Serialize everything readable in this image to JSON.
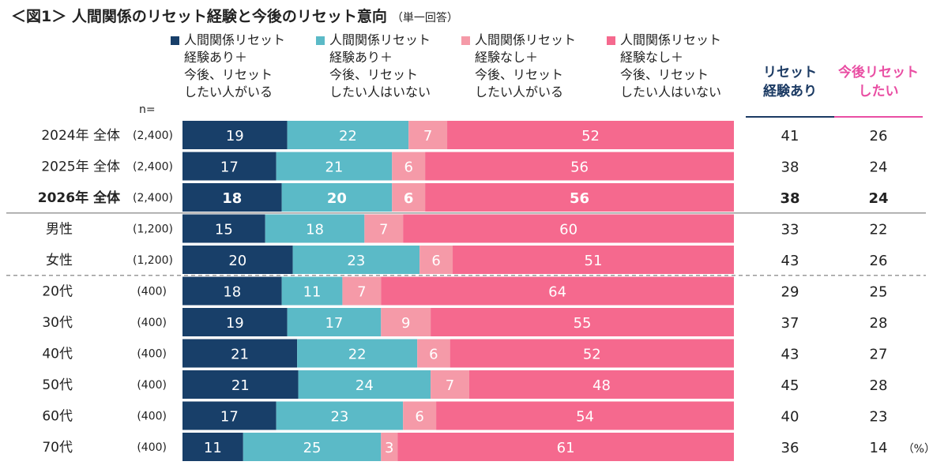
{
  "title": "＜図1＞ 人間関係のリセット経験と今後のリセット意向",
  "subtitle": "（単一回答）",
  "n_label": "n=",
  "unit": "（%）",
  "column_headers": [
    {
      "label": "リセット\n経験あり",
      "color": "#1b3a63"
    },
    {
      "label": "今後リセット\nしたい",
      "color": "#e94ea3"
    }
  ],
  "chart_data": {
    "type": "bar",
    "stacked": true,
    "orientation": "horizontal",
    "categories": [
      "2024年 全体",
      "2025年 全体",
      "2026年 全体",
      "男性",
      "女性",
      "20代",
      "30代",
      "40代",
      "50代",
      "60代",
      "70代"
    ],
    "sample_sizes": [
      "(2,400)",
      "(2,400)",
      "(2,400)",
      "(1,200)",
      "(1,200)",
      "(400)",
      "(400)",
      "(400)",
      "(400)",
      "(400)",
      "(400)"
    ],
    "highlighted_category": "2026年 全体",
    "series": [
      {
        "name": "人間関係リセット\n経験あり＋\n今後、リセット\nしたい人がいる",
        "color": "#183f69",
        "values": [
          19,
          17,
          18,
          15,
          20,
          18,
          19,
          21,
          21,
          17,
          11
        ]
      },
      {
        "name": "人間関係リセット\n経験あり＋\n今後、リセット\nしたい人はいない",
        "color": "#5bbac7",
        "values": [
          22,
          21,
          20,
          18,
          23,
          11,
          17,
          22,
          24,
          23,
          25
        ]
      },
      {
        "name": "人間関係リセット\n経験なし＋\n今後、リセット\nしたい人がいる",
        "color": "#f59aa8",
        "values": [
          7,
          6,
          6,
          7,
          6,
          7,
          9,
          6,
          7,
          6,
          3
        ]
      },
      {
        "name": "人間関係リセット\n経験なし＋\n今後、リセット\nしたい人はいない",
        "color": "#f5698e",
        "values": [
          52,
          56,
          56,
          60,
          51,
          64,
          55,
          52,
          48,
          54,
          61
        ]
      }
    ],
    "summary_columns": [
      {
        "name": "リセット\n経験あり",
        "values": [
          41,
          38,
          38,
          33,
          43,
          29,
          37,
          43,
          45,
          40,
          36
        ]
      },
      {
        "name": "今後リセット\nしたい",
        "values": [
          26,
          24,
          24,
          22,
          26,
          25,
          28,
          27,
          28,
          23,
          14
        ]
      }
    ],
    "xlim": [
      0,
      100
    ],
    "legend": "top",
    "grid": false
  }
}
